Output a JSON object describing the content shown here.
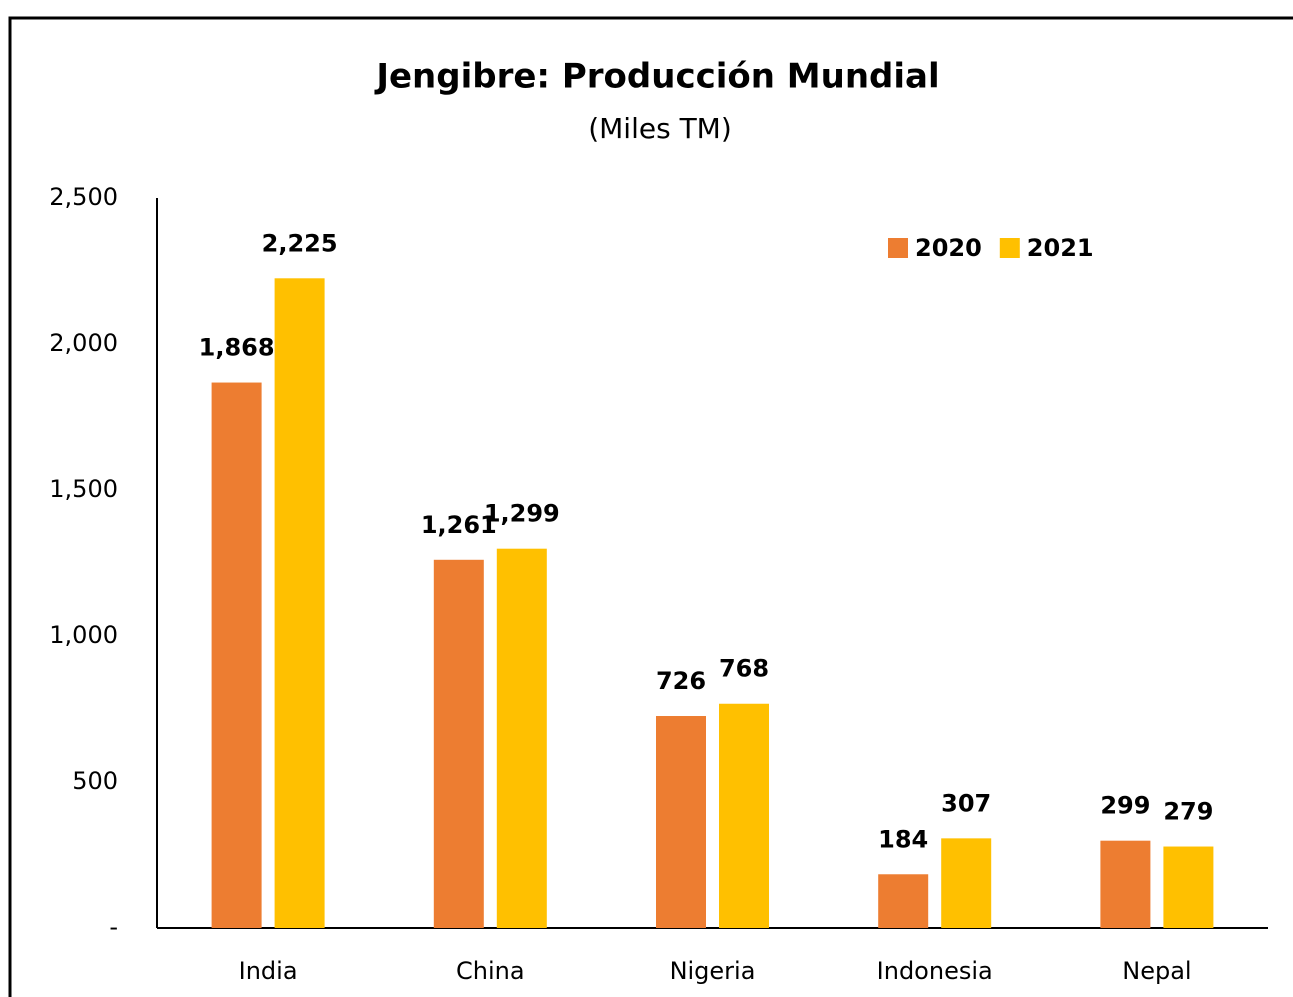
{
  "chart_data": {
    "type": "bar",
    "title": "Jengibre: Producción Mundial",
    "subtitle": "(Miles TM)",
    "categories": [
      "India",
      "China",
      "Nigeria",
      "Indonesia",
      "Nepal"
    ],
    "series": [
      {
        "name": "2020",
        "color": "#ed7d31",
        "values": [
          1868,
          1261,
          726,
          184,
          299
        ],
        "value_labels": [
          "1,868",
          "1,261",
          "726",
          "184",
          "299"
        ]
      },
      {
        "name": "2021",
        "color": "#ffc000",
        "values": [
          2225,
          1299,
          768,
          307,
          279
        ],
        "value_labels": [
          "2,225",
          "1,299",
          "768",
          "307",
          "279"
        ]
      }
    ],
    "ylim": [
      0,
      2500
    ],
    "yticks": [
      {
        "value": 0,
        "label": "-"
      },
      500,
      {
        "value": 1000,
        "label": "1,000"
      },
      {
        "value": 1500,
        "label": "1,500"
      },
      {
        "value": 2000,
        "label": "2,000"
      },
      {
        "value": 2500,
        "label": "2,500"
      }
    ],
    "grid": false,
    "legend": "top-right"
  }
}
